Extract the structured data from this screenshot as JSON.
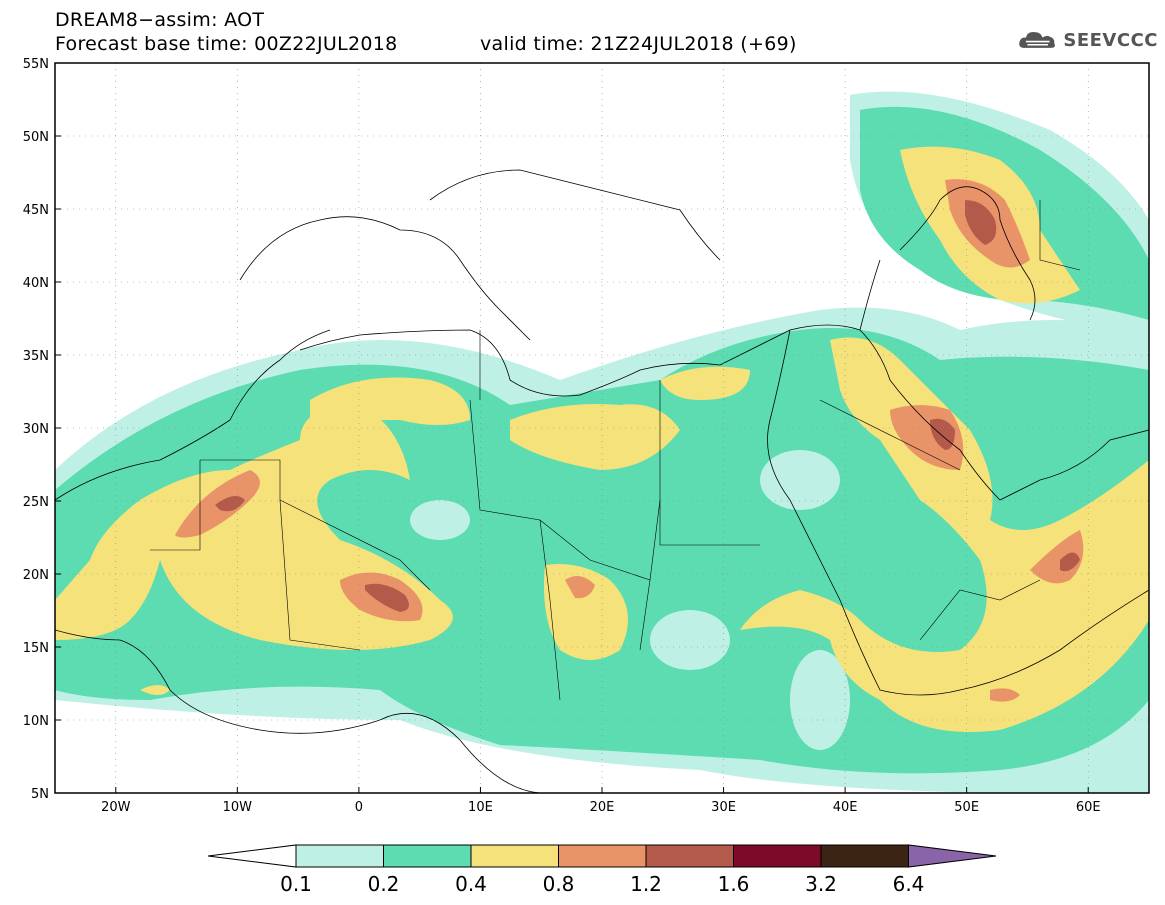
{
  "header": {
    "line1": "DREAM8−assim: AOT",
    "line2": "Forecast base time: 00Z22JUL2018",
    "valid": "valid time: 21Z24JUL2018 (+69)"
  },
  "logo": {
    "text": "SEEVCCC",
    "icon": "cloud-icon"
  },
  "map": {
    "lon_range": [
      -25,
      65
    ],
    "lat_range": [
      5,
      55
    ],
    "lon_ticks": [
      "20W",
      "10W",
      "0",
      "10E",
      "20E",
      "30E",
      "40E",
      "50E",
      "60E"
    ],
    "lon_tick_values": [
      -20,
      -10,
      0,
      10,
      20,
      30,
      40,
      50,
      60
    ],
    "lat_ticks": [
      "55N",
      "50N",
      "45N",
      "40N",
      "35N",
      "30N",
      "25N",
      "20N",
      "15N",
      "10N",
      "5N"
    ],
    "lat_tick_values": [
      55,
      50,
      45,
      40,
      35,
      30,
      25,
      20,
      15,
      10,
      5
    ],
    "gridlines": "dotted"
  },
  "colorbar": {
    "levels": [
      "0.1",
      "0.2",
      "0.4",
      "0.8",
      "1.2",
      "1.6",
      "3.2",
      "6.4"
    ],
    "colors": {
      "below": "#ffffff",
      "0.1-0.2": "#bff0e6",
      "0.2-0.4": "#5cdcb0",
      "0.4-0.8": "#f6e27a",
      "0.8-1.2": "#e89468",
      "1.2-1.6": "#b45a4a",
      "1.6-3.2": "#7d0a28",
      "3.2-6.4": "#3c2414",
      "above": "#8a64a8"
    }
  },
  "chart_data": {
    "type": "heatmap",
    "variable": "AOT",
    "x_units": "degrees longitude",
    "y_units": "degrees latitude",
    "contour_levels": [
      0.1,
      0.2,
      0.4,
      0.8,
      1.2,
      1.6,
      3.2,
      6.4
    ],
    "regions": [
      {
        "level_min": 0.1,
        "description_lonlat": "broad Sahara and Arabia band",
        "lon": [
          -25,
          65
        ],
        "lat": [
          6,
          37
        ]
      },
      {
        "level_min": 0.4,
        "lon": [
          -20,
          10
        ],
        "lat": [
          14,
          33
        ]
      },
      {
        "level_min": 0.8,
        "lon": [
          -14,
          -9
        ],
        "lat": [
          23,
          27
        ]
      },
      {
        "level_min": 1.2,
        "lon": [
          0,
          5
        ],
        "lat": [
          17,
          20
        ]
      },
      {
        "level_min": 0.8,
        "lon": [
          47,
          53
        ],
        "lat": [
          41,
          46
        ]
      },
      {
        "level_min": 0.8,
        "lon": [
          44,
          50
        ],
        "lat": [
          27,
          31
        ]
      },
      {
        "level_min": 0.8,
        "lon": [
          56,
          60
        ],
        "lat": [
          19,
          23
        ]
      }
    ]
  }
}
